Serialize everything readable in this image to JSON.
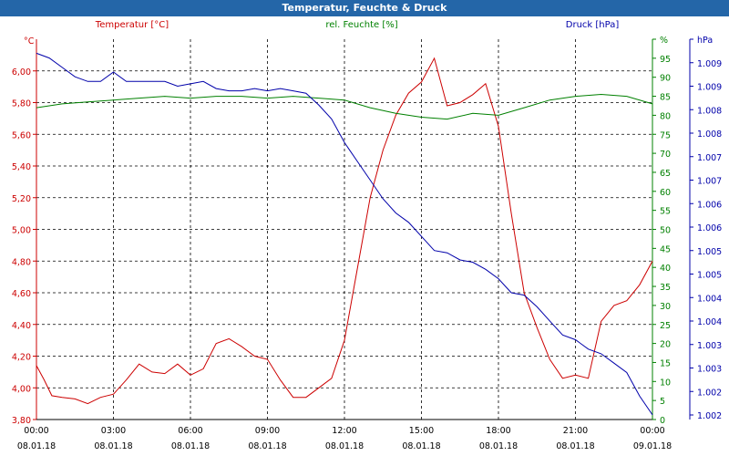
{
  "chart_data": {
    "type": "line",
    "title": "Temperatur, Feuchte & Druck",
    "grid": true,
    "colors": {
      "temperature": "#cc0000",
      "humidity": "#008000",
      "pressure": "#0000aa",
      "title_bar": "#2466a8"
    },
    "x_ticks": [
      {
        "time": "00:00",
        "date": "08.01.18"
      },
      {
        "time": "03:00",
        "date": "08.01.18"
      },
      {
        "time": "06:00",
        "date": "08.01.18"
      },
      {
        "time": "09:00",
        "date": "08.01.18"
      },
      {
        "time": "12:00",
        "date": "08.01.18"
      },
      {
        "time": "15:00",
        "date": "08.01.18"
      },
      {
        "time": "18:00",
        "date": "08.01.18"
      },
      {
        "time": "21:00",
        "date": "08.01.18"
      },
      {
        "time": "00:00",
        "date": "09.01.18"
      }
    ],
    "axes": {
      "left": {
        "unit": "°C",
        "ylim": [
          3.8,
          6.2
        ],
        "ticks": [
          "3,80",
          "4,00",
          "4,20",
          "4,40",
          "4,60",
          "4,80",
          "5,00",
          "5,20",
          "5,40",
          "5,60",
          "5,80",
          "6,00"
        ]
      },
      "right1": {
        "unit": "%",
        "ylim": [
          0,
          100
        ],
        "ticks": [
          "0",
          "5",
          "10",
          "15",
          "20",
          "25",
          "30",
          "35",
          "40",
          "45",
          "50",
          "55",
          "60",
          "65",
          "70",
          "75",
          "80",
          "85",
          "90",
          "95",
          "%"
        ]
      },
      "right2": {
        "unit": "hPa",
        "ylim": [
          1001.8,
          1009.9
        ],
        "ticks": [
          "1.002",
          "1.002",
          "1.003",
          "1.003",
          "1.004",
          "1.004",
          "1.005",
          "1.005",
          "1.006",
          "1.006",
          "1.007",
          "1.007",
          "1.008",
          "1.008",
          "1.009",
          "1.009",
          "hPa"
        ]
      }
    },
    "series": [
      {
        "name": "Temperatur [°C]",
        "axis": "left",
        "x_hours": [
          0,
          0.3,
          0.6,
          1,
          1.5,
          2,
          2.5,
          3,
          3.5,
          4,
          4.5,
          5,
          5.5,
          6,
          6.5,
          7,
          7.5,
          8,
          8.5,
          9,
          9.5,
          10,
          10.5,
          11,
          11.5,
          12,
          12.5,
          13,
          13.5,
          14,
          14.5,
          15,
          15.5,
          16,
          16.5,
          17,
          17.5,
          18,
          18.5,
          19,
          19.5,
          20,
          20.5,
          21,
          21.5,
          22,
          22.5,
          23,
          23.5,
          24
        ],
        "values": [
          4.14,
          4.05,
          3.95,
          3.94,
          3.93,
          3.9,
          3.94,
          3.96,
          4.05,
          4.15,
          4.1,
          4.09,
          4.15,
          4.08,
          4.12,
          4.28,
          4.31,
          4.26,
          4.2,
          4.18,
          4.05,
          3.94,
          3.94,
          4.0,
          4.06,
          4.3,
          4.75,
          5.2,
          5.5,
          5.72,
          5.86,
          5.93,
          6.08,
          5.78,
          5.8,
          5.85,
          5.92,
          5.65,
          5.1,
          4.6,
          4.38,
          4.18,
          4.06,
          4.08,
          4.06,
          4.42,
          4.52,
          4.55,
          4.65,
          4.8
        ]
      },
      {
        "name": "rel. Feuchte [%]",
        "axis": "right1",
        "x_hours": [
          0,
          1,
          2,
          3,
          4,
          5,
          6,
          7,
          8,
          9,
          10,
          11,
          12,
          13,
          14,
          15,
          16,
          17,
          18,
          19,
          20,
          21,
          22,
          23,
          24
        ],
        "values": [
          82,
          83,
          83.5,
          84,
          84.5,
          85,
          84.5,
          85,
          85,
          84.5,
          85,
          84.5,
          84,
          82,
          80.5,
          79.5,
          79,
          80.5,
          80,
          82,
          84,
          85,
          85.5,
          85,
          83
        ]
      },
      {
        "name": "Druck [hPa]",
        "axis": "right2",
        "x_hours": [
          0,
          0.5,
          1,
          1.5,
          2,
          2.5,
          3,
          3.5,
          4,
          4.5,
          5,
          5.5,
          6,
          6.5,
          7,
          7.5,
          8,
          8.5,
          9,
          9.5,
          10,
          10.5,
          11,
          11.5,
          12,
          12.5,
          13,
          13.5,
          14,
          14.5,
          15,
          15.5,
          16,
          16.5,
          17,
          17.5,
          18,
          18.5,
          19,
          19.5,
          20,
          20.5,
          21,
          21.5,
          22,
          22.5,
          23,
          23.5,
          24
        ],
        "values": [
          1009.6,
          1009.5,
          1009.3,
          1009.1,
          1009.0,
          1009.0,
          1009.2,
          1009.0,
          1009.0,
          1009.0,
          1009.0,
          1008.9,
          1008.95,
          1009.0,
          1008.85,
          1008.8,
          1008.8,
          1008.85,
          1008.8,
          1008.85,
          1008.8,
          1008.75,
          1008.5,
          1008.2,
          1007.7,
          1007.3,
          1006.9,
          1006.5,
          1006.2,
          1006.0,
          1005.7,
          1005.4,
          1005.35,
          1005.2,
          1005.15,
          1005.0,
          1004.8,
          1004.5,
          1004.45,
          1004.2,
          1003.9,
          1003.6,
          1003.5,
          1003.3,
          1003.2,
          1003.0,
          1002.8,
          1002.3,
          1001.9
        ]
      }
    ]
  }
}
